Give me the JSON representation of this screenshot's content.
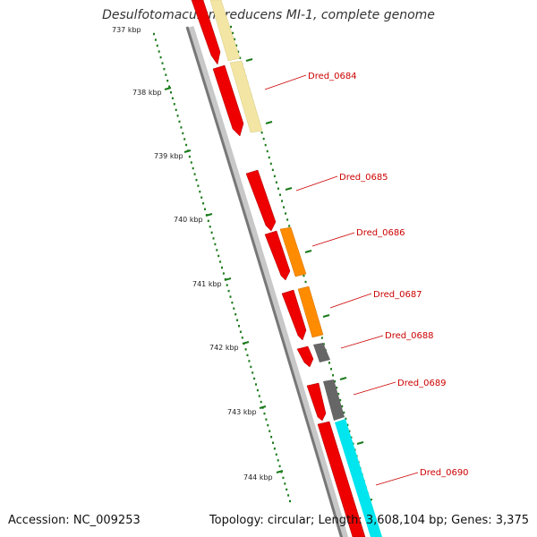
{
  "title": "Desulfotomaculum reducens MI-1, complete genome",
  "footer": {
    "accession": "Accession: NC_009253",
    "summary": "Topology: circular; Length: 3,608,104 bp; Genes: 3,375"
  },
  "colors": {
    "backbone": "#888888",
    "cds": "#ee0000",
    "tick": "#1a7a1a",
    "label_line": "#cc0000",
    "feature_colors": [
      "#f3e6a4",
      "#ff8c00",
      "#666666",
      "#00e5ee"
    ]
  },
  "scale_ticks": [
    "737 kbp",
    "738 kbp",
    "739 kbp",
    "740 kbp",
    "741 kbp",
    "742 kbp",
    "743 kbp",
    "744 kbp"
  ],
  "genes": [
    "Dred_0684",
    "Dred_0685",
    "Dred_0686",
    "Dred_0687",
    "Dred_0688",
    "Dred_0689",
    "Dred_0690"
  ]
}
